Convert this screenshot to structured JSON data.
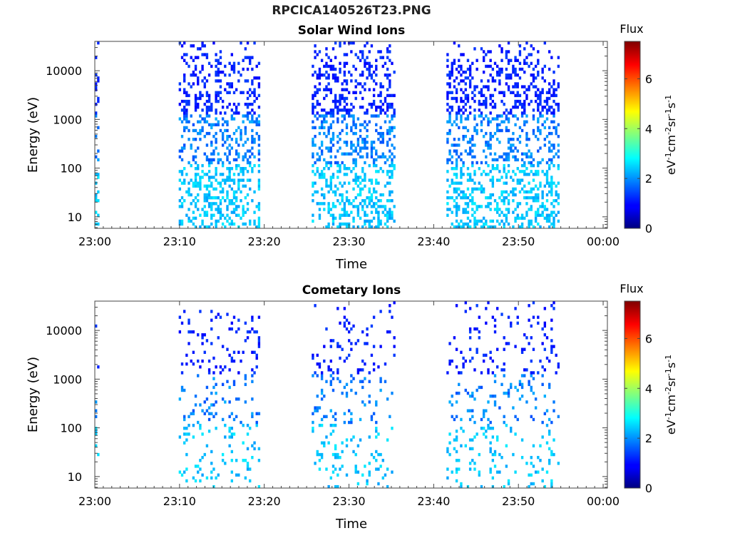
{
  "figure": {
    "title": "RPCICA140526T23.PNG"
  },
  "colorbar": {
    "label": "Flux",
    "unit_base": "eV",
    "unit_sup1": "-1",
    "unit_cm": "cm",
    "unit_sup2": "-2",
    "unit_sr": "sr",
    "unit_sup3": "-1",
    "unit_s": "s",
    "unit_sup4": "-1",
    "ticks": [
      "0",
      "2",
      "4",
      "6"
    ],
    "range": [
      0,
      7.5
    ],
    "colormap": "jet"
  },
  "chart_data": [
    {
      "type": "heatmap",
      "title": "Solar Wind Ions",
      "xlabel": "Time",
      "ylabel": "Energy (eV)",
      "x_ticks": [
        "23:00",
        "23:10",
        "23:20",
        "23:30",
        "23:40",
        "23:50",
        "00:00"
      ],
      "x_range_minutes": [
        0,
        60.5
      ],
      "y_ticks": [
        "10",
        "100",
        "1000",
        "10000"
      ],
      "y_scale": "log",
      "y_range": [
        5.8,
        40000
      ],
      "grid": false,
      "data_intervals_minutes": [
        [
          0,
          0.3
        ],
        [
          9.9,
          19.3
        ],
        [
          25.6,
          35.3
        ],
        [
          41.5,
          54.7
        ]
      ],
      "typical_flux": 2.0,
      "max_flux": 3.0
    },
    {
      "type": "heatmap",
      "title": "Cometary Ions",
      "xlabel": "Time",
      "ylabel": "Energy (eV)",
      "x_ticks": [
        "23:00",
        "23:10",
        "23:20",
        "23:30",
        "23:40",
        "23:50",
        "00:00"
      ],
      "x_range_minutes": [
        0,
        60.5
      ],
      "y_ticks": [
        "10",
        "100",
        "1000",
        "10000"
      ],
      "y_scale": "log",
      "y_range": [
        5.8,
        40000
      ],
      "grid": false,
      "data_intervals_minutes": [
        [
          0,
          0.3
        ],
        [
          9.9,
          19.3
        ],
        [
          25.6,
          35.3
        ],
        [
          41.5,
          54.7
        ]
      ],
      "typical_flux": 2.0,
      "max_flux": 2.8
    }
  ]
}
